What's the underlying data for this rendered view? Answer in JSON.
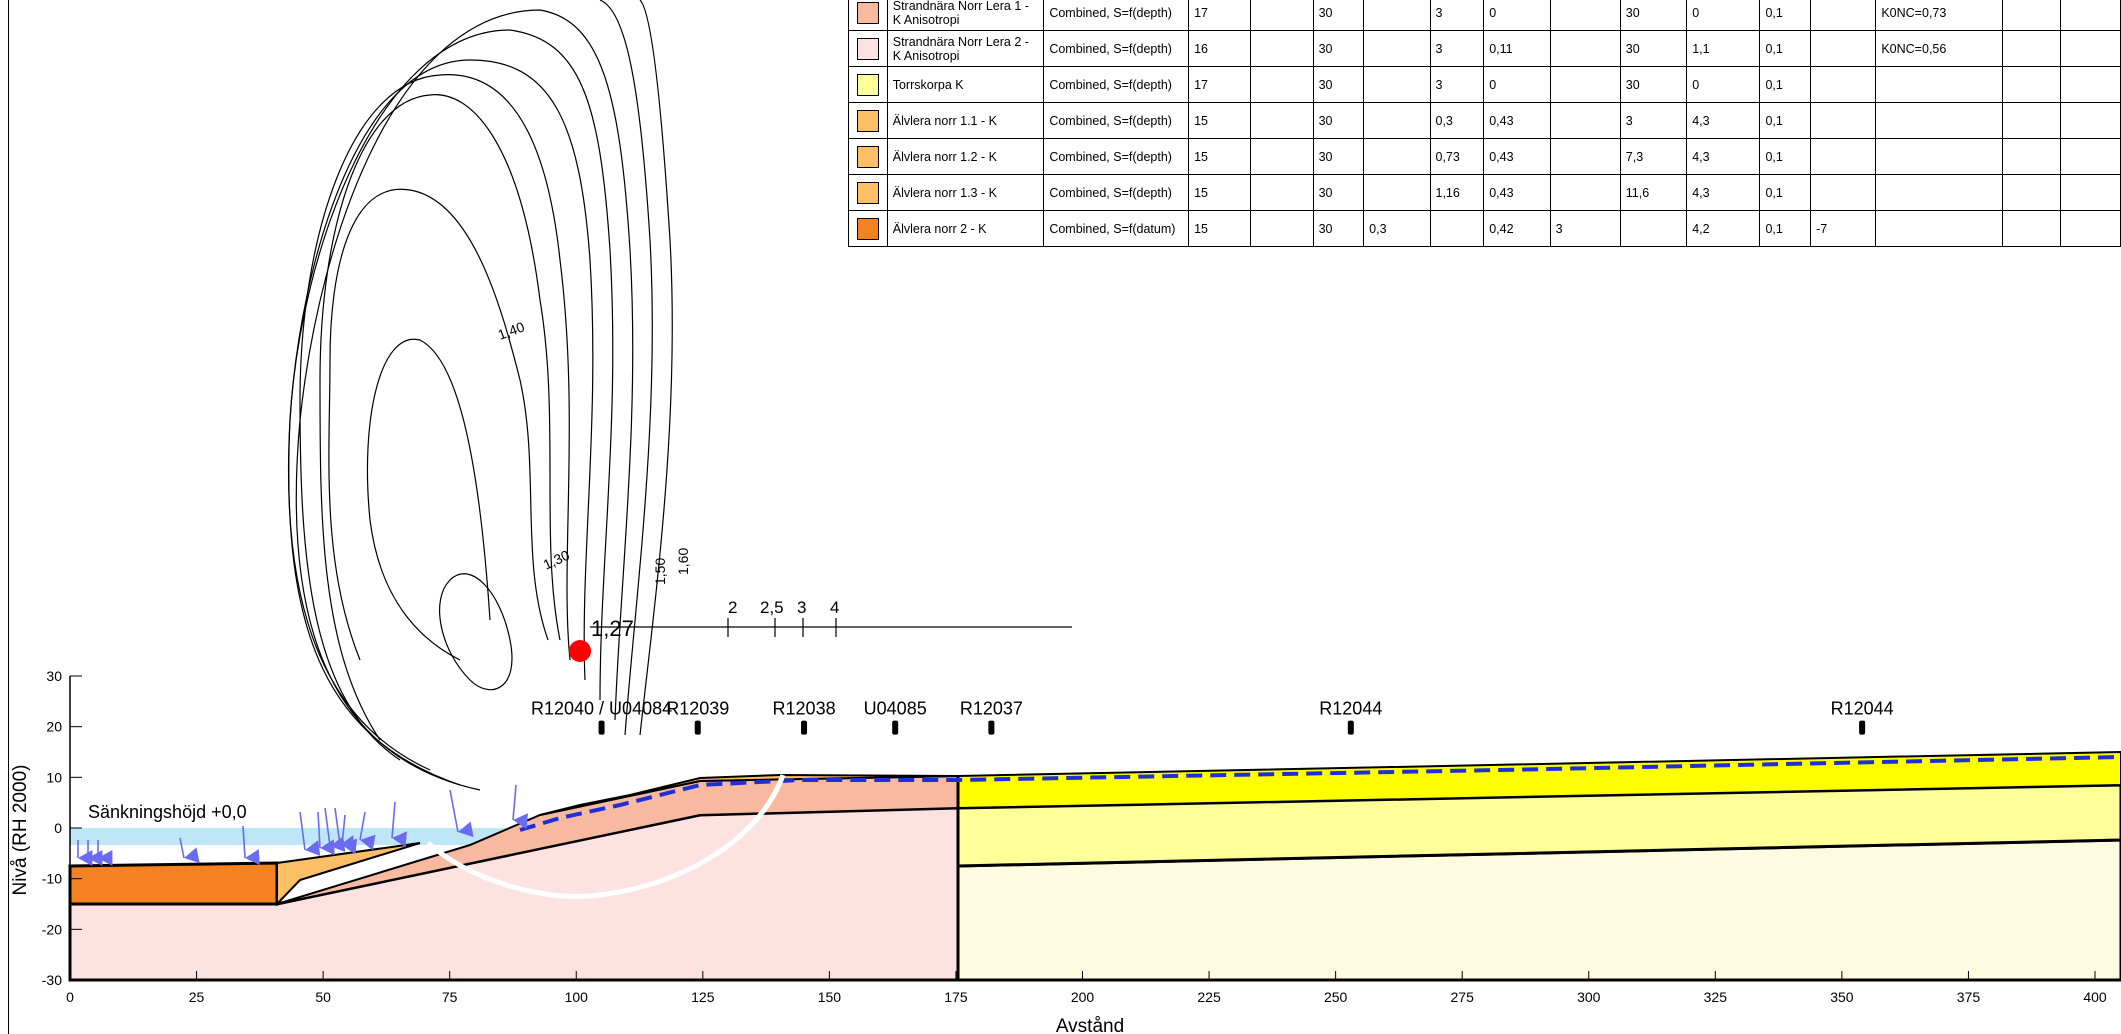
{
  "table": {
    "columns_count": 17,
    "rows": [
      {
        "color": "#f7b9a0",
        "name": "Strandnära Norr Lera 1 - K Anisotropi",
        "cells": [
          "Combined, S=f(depth)",
          "17",
          "",
          "30",
          "",
          "3",
          "0",
          "",
          "30",
          "0",
          "0,1",
          "",
          "K0NC=0,73",
          "",
          ""
        ]
      },
      {
        "color": "#fde2e2",
        "name": "Strandnära Norr Lera 2 - K Anisotropi",
        "cells": [
          "Combined, S=f(depth)",
          "16",
          "",
          "30",
          "",
          "3",
          "0,11",
          "",
          "30",
          "1,1",
          "0,1",
          "",
          "K0NC=0,56",
          "",
          ""
        ]
      },
      {
        "color": "#ffff99",
        "name": "Torrskorpa K",
        "cells": [
          "Combined, S=f(depth)",
          "17",
          "",
          "30",
          "",
          "3",
          "0",
          "",
          "30",
          "0",
          "0,1",
          "",
          "",
          "",
          ""
        ]
      },
      {
        "color": "#fbbf66",
        "name": "Älvlera norr 1.1 - K",
        "cells": [
          "Combined, S=f(depth)",
          "15",
          "",
          "30",
          "",
          "0,3",
          "0,43",
          "",
          "3",
          "4,3",
          "0,1",
          "",
          "",
          "",
          ""
        ]
      },
      {
        "color": "#fbbf66",
        "name": "Älvlera norr 1.2 - K",
        "cells": [
          "Combined, S=f(depth)",
          "15",
          "",
          "30",
          "",
          "0,73",
          "0,43",
          "",
          "7,3",
          "4,3",
          "0,1",
          "",
          "",
          "",
          ""
        ]
      },
      {
        "color": "#fbbf66",
        "name": "Älvlera norr 1.3 - K",
        "cells": [
          "Combined, S=f(depth)",
          "15",
          "",
          "30",
          "",
          "1,16",
          "0,43",
          "",
          "11,6",
          "4,3",
          "0,1",
          "",
          "",
          "",
          ""
        ]
      },
      {
        "color": "#f58220",
        "name": "Älvlera norr 2 - K",
        "cells": [
          "Combined, S=f(datum)",
          "15",
          "",
          "30",
          "0,3",
          "",
          "0,42",
          "3",
          "",
          "4,2",
          "0,1",
          "-7",
          "",
          "",
          ""
        ]
      }
    ]
  },
  "axes": {
    "x_label": "Avstånd",
    "y_label": "Nivå (RH 2000)",
    "x_ticks": [
      "0",
      "25",
      "50",
      "75",
      "100",
      "125",
      "150",
      "175",
      "200",
      "225",
      "250",
      "275",
      "300",
      "325",
      "350",
      "375",
      "400"
    ],
    "y_ticks": [
      "30",
      "20",
      "10",
      "0",
      "-10",
      "-20",
      "-30"
    ],
    "x_range": [
      0,
      400
    ],
    "y_range": [
      -30,
      30
    ]
  },
  "annotations": {
    "lowering_label": "Sänkningshöjd +0,0",
    "min_factor": "1,27",
    "factor_scale": [
      "2",
      "2,5",
      "3",
      "4"
    ],
    "contours": [
      "1,40",
      "1,30",
      "1,50",
      "1,60"
    ]
  },
  "boreholes": [
    {
      "label": "R12040 / U04084",
      "x": 105
    },
    {
      "label": "R12039",
      "x": 124
    },
    {
      "label": "R12038",
      "x": 145
    },
    {
      "label": "U04085",
      "x": 163
    },
    {
      "label": "R12037",
      "x": 182
    },
    {
      "label": "R12044",
      "x": 253
    },
    {
      "label": "R12044",
      "x": 354
    }
  ],
  "colors": {
    "water": "#bfe6f7",
    "clay1": "#f7b9a0",
    "clay2": "#fde2e2",
    "dry_crust": "#ffff00",
    "dry_crust_light": "#ffff99",
    "pale_layer": "#fffbe0",
    "river_clay": "#f58220",
    "river_clay_light": "#fbbf66",
    "piezometric": "#1f2fd8",
    "load_arrows": "#6b6bf0",
    "slip_circle": "#ffffff",
    "critical_point": "#ff0000"
  }
}
